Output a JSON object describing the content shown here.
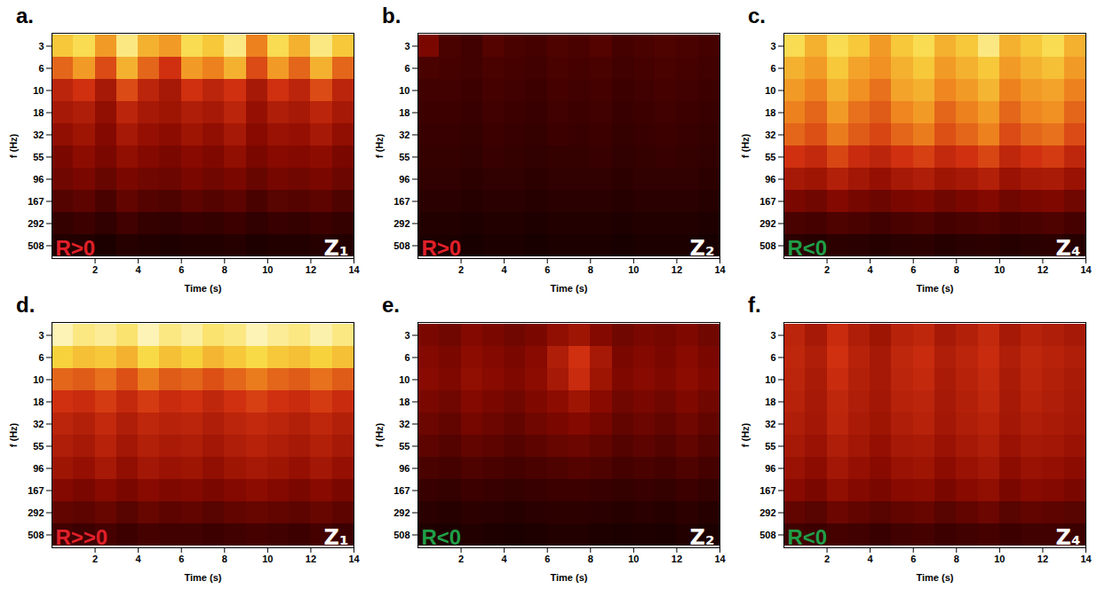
{
  "chart_data": [
    {
      "type": "heatmap",
      "letter": "a.",
      "annotation": "R>0",
      "annotation_color": "#e0202a",
      "zone": "Z₁",
      "x_label": "Time (s)",
      "y_label": "f (Hz)",
      "xlim": [
        0,
        14
      ],
      "xticks": [
        2,
        4,
        6,
        8,
        10,
        12,
        14
      ],
      "y_categories": [
        3,
        6,
        10,
        18,
        32,
        55,
        96,
        167,
        292,
        508
      ],
      "time_bins": [
        0,
        1,
        2,
        3,
        4,
        5,
        6,
        7,
        8,
        9,
        10,
        11,
        12,
        13,
        14
      ],
      "color_range": [
        0,
        1
      ],
      "cells": [
        [
          0.8,
          0.85,
          0.7,
          0.9,
          0.75,
          0.7,
          0.85,
          0.8,
          0.9,
          0.65,
          0.85,
          0.75,
          0.9,
          0.8
        ],
        [
          0.6,
          0.7,
          0.55,
          0.75,
          0.6,
          0.5,
          0.7,
          0.65,
          0.75,
          0.55,
          0.7,
          0.6,
          0.75,
          0.6
        ],
        [
          0.45,
          0.5,
          0.4,
          0.55,
          0.45,
          0.4,
          0.5,
          0.45,
          0.5,
          0.4,
          0.5,
          0.45,
          0.55,
          0.45
        ],
        [
          0.4,
          0.42,
          0.35,
          0.45,
          0.4,
          0.38,
          0.42,
          0.4,
          0.45,
          0.36,
          0.42,
          0.4,
          0.45,
          0.4
        ],
        [
          0.35,
          0.38,
          0.32,
          0.4,
          0.36,
          0.34,
          0.38,
          0.35,
          0.4,
          0.33,
          0.37,
          0.36,
          0.4,
          0.35
        ],
        [
          0.3,
          0.34,
          0.3,
          0.35,
          0.32,
          0.3,
          0.33,
          0.31,
          0.35,
          0.3,
          0.33,
          0.32,
          0.34,
          0.3
        ],
        [
          0.28,
          0.3,
          0.26,
          0.3,
          0.28,
          0.27,
          0.3,
          0.28,
          0.3,
          0.26,
          0.29,
          0.28,
          0.3,
          0.27
        ],
        [
          0.22,
          0.24,
          0.2,
          0.25,
          0.22,
          0.21,
          0.24,
          0.22,
          0.24,
          0.2,
          0.23,
          0.22,
          0.24,
          0.21
        ],
        [
          0.15,
          0.17,
          0.14,
          0.18,
          0.15,
          0.14,
          0.16,
          0.15,
          0.17,
          0.14,
          0.16,
          0.15,
          0.17,
          0.15
        ],
        [
          0.1,
          0.1,
          0.08,
          0.11,
          0.1,
          0.09,
          0.1,
          0.1,
          0.11,
          0.09,
          0.1,
          0.1,
          0.11,
          0.1
        ]
      ]
    },
    {
      "type": "heatmap",
      "letter": "b.",
      "annotation": "R>0",
      "annotation_color": "#e0202a",
      "zone": "Z₂",
      "x_label": "Time (s)",
      "y_label": "f (Hz)",
      "xlim": [
        0,
        14
      ],
      "xticks": [
        2,
        4,
        6,
        8,
        10,
        12,
        14
      ],
      "y_categories": [
        3,
        6,
        10,
        18,
        32,
        55,
        96,
        167,
        292,
        508
      ],
      "time_bins": [
        0,
        1,
        2,
        3,
        4,
        5,
        6,
        7,
        8,
        9,
        10,
        11,
        12,
        13,
        14
      ],
      "color_range": [
        0,
        1
      ],
      "cells": [
        [
          0.3,
          0.2,
          0.18,
          0.22,
          0.2,
          0.19,
          0.21,
          0.2,
          0.22,
          0.19,
          0.2,
          0.21,
          0.2,
          0.19
        ],
        [
          0.2,
          0.19,
          0.18,
          0.2,
          0.19,
          0.18,
          0.2,
          0.19,
          0.2,
          0.18,
          0.19,
          0.2,
          0.19,
          0.18
        ],
        [
          0.18,
          0.18,
          0.17,
          0.19,
          0.18,
          0.17,
          0.19,
          0.18,
          0.19,
          0.17,
          0.18,
          0.19,
          0.18,
          0.17
        ],
        [
          0.17,
          0.17,
          0.16,
          0.18,
          0.17,
          0.16,
          0.18,
          0.17,
          0.18,
          0.16,
          0.17,
          0.18,
          0.17,
          0.16
        ],
        [
          0.16,
          0.16,
          0.15,
          0.17,
          0.16,
          0.15,
          0.17,
          0.16,
          0.17,
          0.15,
          0.16,
          0.17,
          0.16,
          0.15
        ],
        [
          0.15,
          0.15,
          0.14,
          0.16,
          0.15,
          0.14,
          0.15,
          0.15,
          0.16,
          0.14,
          0.15,
          0.16,
          0.15,
          0.14
        ],
        [
          0.14,
          0.14,
          0.13,
          0.14,
          0.14,
          0.13,
          0.14,
          0.14,
          0.14,
          0.13,
          0.14,
          0.14,
          0.14,
          0.13
        ],
        [
          0.12,
          0.12,
          0.11,
          0.12,
          0.12,
          0.11,
          0.12,
          0.12,
          0.12,
          0.11,
          0.12,
          0.12,
          0.12,
          0.11
        ],
        [
          0.1,
          0.1,
          0.09,
          0.1,
          0.1,
          0.09,
          0.1,
          0.1,
          0.1,
          0.09,
          0.1,
          0.1,
          0.1,
          0.09
        ],
        [
          0.08,
          0.08,
          0.07,
          0.08,
          0.08,
          0.07,
          0.08,
          0.08,
          0.08,
          0.07,
          0.08,
          0.08,
          0.08,
          0.07
        ]
      ]
    },
    {
      "type": "heatmap",
      "letter": "c.",
      "annotation": "R<0",
      "annotation_color": "#1f9e48",
      "zone": "Z₄",
      "x_label": "Time (s)",
      "y_label": "f (Hz)",
      "xlim": [
        0,
        14
      ],
      "xticks": [
        2,
        4,
        6,
        8,
        10,
        12,
        14
      ],
      "y_categories": [
        3,
        6,
        10,
        18,
        32,
        55,
        96,
        167,
        292,
        508
      ],
      "time_bins": [
        0,
        1,
        2,
        3,
        4,
        5,
        6,
        7,
        8,
        9,
        10,
        11,
        12,
        13,
        14
      ],
      "color_range": [
        0,
        1
      ],
      "cells": [
        [
          0.85,
          0.75,
          0.85,
          0.8,
          0.7,
          0.8,
          0.85,
          0.75,
          0.8,
          0.9,
          0.75,
          0.8,
          0.85,
          0.75
        ],
        [
          0.75,
          0.7,
          0.8,
          0.72,
          0.68,
          0.75,
          0.8,
          0.7,
          0.75,
          0.8,
          0.7,
          0.75,
          0.78,
          0.7
        ],
        [
          0.7,
          0.65,
          0.75,
          0.68,
          0.62,
          0.72,
          0.75,
          0.66,
          0.7,
          0.76,
          0.65,
          0.7,
          0.72,
          0.65
        ],
        [
          0.65,
          0.6,
          0.7,
          0.62,
          0.58,
          0.66,
          0.7,
          0.6,
          0.65,
          0.7,
          0.6,
          0.66,
          0.68,
          0.6
        ],
        [
          0.6,
          0.56,
          0.64,
          0.58,
          0.54,
          0.6,
          0.64,
          0.56,
          0.6,
          0.65,
          0.55,
          0.6,
          0.62,
          0.55
        ],
        [
          0.5,
          0.47,
          0.54,
          0.48,
          0.45,
          0.5,
          0.53,
          0.47,
          0.5,
          0.54,
          0.46,
          0.5,
          0.52,
          0.46
        ],
        [
          0.4,
          0.38,
          0.43,
          0.39,
          0.36,
          0.4,
          0.42,
          0.38,
          0.4,
          0.43,
          0.37,
          0.4,
          0.41,
          0.37
        ],
        [
          0.3,
          0.28,
          0.32,
          0.29,
          0.27,
          0.3,
          0.31,
          0.28,
          0.3,
          0.32,
          0.28,
          0.3,
          0.31,
          0.28
        ],
        [
          0.2,
          0.19,
          0.21,
          0.2,
          0.18,
          0.2,
          0.21,
          0.19,
          0.2,
          0.21,
          0.19,
          0.2,
          0.21,
          0.19
        ],
        [
          0.12,
          0.11,
          0.13,
          0.12,
          0.11,
          0.12,
          0.13,
          0.11,
          0.12,
          0.13,
          0.11,
          0.12,
          0.13,
          0.11
        ]
      ]
    },
    {
      "type": "heatmap",
      "letter": "d.",
      "annotation": "R>>0",
      "annotation_color": "#e0202a",
      "zone": "Z₁",
      "x_label": "Time (s)",
      "y_label": "f (Hz)",
      "xlim": [
        0,
        14
      ],
      "xticks": [
        2,
        4,
        6,
        8,
        10,
        12,
        14
      ],
      "y_categories": [
        3,
        6,
        10,
        18,
        32,
        55,
        96,
        167,
        292,
        508
      ],
      "time_bins": [
        0,
        1,
        2,
        3,
        4,
        5,
        6,
        7,
        8,
        9,
        10,
        11,
        12,
        13,
        14
      ],
      "color_range": [
        0,
        1
      ],
      "cells": [
        [
          0.95,
          0.9,
          0.92,
          0.88,
          0.95,
          0.9,
          0.93,
          0.88,
          0.9,
          0.95,
          0.92,
          0.9,
          0.94,
          0.9
        ],
        [
          0.82,
          0.78,
          0.8,
          0.75,
          0.84,
          0.78,
          0.82,
          0.76,
          0.8,
          0.84,
          0.8,
          0.78,
          0.82,
          0.78
        ],
        [
          0.6,
          0.58,
          0.62,
          0.56,
          0.64,
          0.58,
          0.6,
          0.56,
          0.6,
          0.64,
          0.6,
          0.58,
          0.62,
          0.58
        ],
        [
          0.5,
          0.48,
          0.52,
          0.47,
          0.52,
          0.48,
          0.5,
          0.46,
          0.5,
          0.53,
          0.5,
          0.48,
          0.52,
          0.48
        ],
        [
          0.45,
          0.43,
          0.47,
          0.42,
          0.46,
          0.44,
          0.45,
          0.42,
          0.45,
          0.47,
          0.45,
          0.43,
          0.46,
          0.43
        ],
        [
          0.42,
          0.4,
          0.44,
          0.39,
          0.43,
          0.41,
          0.42,
          0.39,
          0.42,
          0.44,
          0.42,
          0.4,
          0.43,
          0.4
        ],
        [
          0.38,
          0.36,
          0.4,
          0.35,
          0.39,
          0.37,
          0.38,
          0.35,
          0.38,
          0.4,
          0.38,
          0.36,
          0.39,
          0.36
        ],
        [
          0.32,
          0.3,
          0.33,
          0.3,
          0.33,
          0.31,
          0.32,
          0.3,
          0.32,
          0.34,
          0.32,
          0.3,
          0.33,
          0.3
        ],
        [
          0.25,
          0.24,
          0.26,
          0.23,
          0.26,
          0.24,
          0.25,
          0.23,
          0.25,
          0.26,
          0.25,
          0.24,
          0.26,
          0.24
        ],
        [
          0.18,
          0.17,
          0.19,
          0.17,
          0.19,
          0.18,
          0.18,
          0.17,
          0.18,
          0.19,
          0.18,
          0.17,
          0.19,
          0.17
        ]
      ]
    },
    {
      "type": "heatmap",
      "letter": "e.",
      "annotation": "R<0",
      "annotation_color": "#1f9e48",
      "zone": "Z₂",
      "x_label": "Time (s)",
      "y_label": "f (Hz)",
      "xlim": [
        0,
        14
      ],
      "xticks": [
        2,
        4,
        6,
        8,
        10,
        12,
        14
      ],
      "y_categories": [
        3,
        6,
        10,
        18,
        32,
        55,
        96,
        167,
        292,
        508
      ],
      "time_bins": [
        0,
        1,
        2,
        3,
        4,
        5,
        6,
        7,
        8,
        9,
        10,
        11,
        12,
        13,
        14
      ],
      "color_range": [
        0,
        1
      ],
      "cells": [
        [
          0.3,
          0.28,
          0.32,
          0.3,
          0.28,
          0.3,
          0.35,
          0.38,
          0.32,
          0.28,
          0.3,
          0.29,
          0.31,
          0.28
        ],
        [
          0.32,
          0.3,
          0.34,
          0.32,
          0.3,
          0.33,
          0.42,
          0.5,
          0.4,
          0.3,
          0.32,
          0.3,
          0.33,
          0.3
        ],
        [
          0.33,
          0.31,
          0.35,
          0.33,
          0.31,
          0.34,
          0.4,
          0.48,
          0.38,
          0.31,
          0.33,
          0.31,
          0.34,
          0.31
        ],
        [
          0.3,
          0.28,
          0.32,
          0.3,
          0.28,
          0.31,
          0.34,
          0.38,
          0.33,
          0.28,
          0.3,
          0.28,
          0.31,
          0.28
        ],
        [
          0.27,
          0.25,
          0.29,
          0.27,
          0.25,
          0.28,
          0.3,
          0.32,
          0.29,
          0.25,
          0.27,
          0.25,
          0.28,
          0.25
        ],
        [
          0.24,
          0.22,
          0.25,
          0.24,
          0.22,
          0.24,
          0.26,
          0.27,
          0.25,
          0.22,
          0.24,
          0.22,
          0.25,
          0.22
        ],
        [
          0.2,
          0.19,
          0.21,
          0.2,
          0.19,
          0.2,
          0.21,
          0.22,
          0.21,
          0.19,
          0.2,
          0.19,
          0.21,
          0.19
        ],
        [
          0.16,
          0.15,
          0.17,
          0.16,
          0.15,
          0.16,
          0.17,
          0.17,
          0.16,
          0.15,
          0.16,
          0.15,
          0.17,
          0.15
        ],
        [
          0.12,
          0.11,
          0.13,
          0.12,
          0.11,
          0.12,
          0.13,
          0.13,
          0.12,
          0.11,
          0.12,
          0.11,
          0.13,
          0.11
        ],
        [
          0.09,
          0.08,
          0.1,
          0.09,
          0.08,
          0.09,
          0.1,
          0.1,
          0.09,
          0.08,
          0.09,
          0.08,
          0.1,
          0.08
        ]
      ]
    },
    {
      "type": "heatmap",
      "letter": "f.",
      "annotation": "R<0",
      "annotation_color": "#1f9e48",
      "zone": "Z₄",
      "x_label": "Time (s)",
      "y_label": "f (Hz)",
      "xlim": [
        0,
        14
      ],
      "xticks": [
        2,
        4,
        6,
        8,
        10,
        12,
        14
      ],
      "y_categories": [
        3,
        6,
        10,
        18,
        32,
        55,
        96,
        167,
        292,
        508
      ],
      "time_bins": [
        0,
        1,
        2,
        3,
        4,
        5,
        6,
        7,
        8,
        9,
        10,
        11,
        12,
        13,
        14
      ],
      "color_range": [
        0,
        1
      ],
      "cells": [
        [
          0.45,
          0.4,
          0.48,
          0.42,
          0.38,
          0.44,
          0.46,
          0.4,
          0.43,
          0.47,
          0.4,
          0.44,
          0.42,
          0.4
        ],
        [
          0.46,
          0.42,
          0.5,
          0.44,
          0.4,
          0.46,
          0.48,
          0.42,
          0.45,
          0.48,
          0.42,
          0.46,
          0.44,
          0.42
        ],
        [
          0.45,
          0.41,
          0.48,
          0.43,
          0.4,
          0.45,
          0.47,
          0.41,
          0.44,
          0.47,
          0.41,
          0.45,
          0.43,
          0.41
        ],
        [
          0.44,
          0.4,
          0.46,
          0.42,
          0.39,
          0.44,
          0.45,
          0.4,
          0.43,
          0.46,
          0.4,
          0.44,
          0.42,
          0.4
        ],
        [
          0.42,
          0.39,
          0.45,
          0.41,
          0.38,
          0.42,
          0.44,
          0.39,
          0.42,
          0.44,
          0.39,
          0.42,
          0.41,
          0.39
        ],
        [
          0.4,
          0.37,
          0.42,
          0.39,
          0.36,
          0.4,
          0.41,
          0.37,
          0.4,
          0.42,
          0.37,
          0.4,
          0.39,
          0.37
        ],
        [
          0.37,
          0.34,
          0.39,
          0.36,
          0.33,
          0.37,
          0.38,
          0.34,
          0.37,
          0.39,
          0.34,
          0.37,
          0.36,
          0.34
        ],
        [
          0.33,
          0.3,
          0.35,
          0.32,
          0.3,
          0.33,
          0.34,
          0.3,
          0.33,
          0.35,
          0.3,
          0.33,
          0.32,
          0.3
        ],
        [
          0.25,
          0.23,
          0.27,
          0.25,
          0.23,
          0.25,
          0.26,
          0.23,
          0.25,
          0.27,
          0.23,
          0.25,
          0.24,
          0.23
        ],
        [
          0.18,
          0.17,
          0.19,
          0.18,
          0.16,
          0.18,
          0.19,
          0.17,
          0.18,
          0.19,
          0.17,
          0.18,
          0.18,
          0.17
        ]
      ]
    }
  ]
}
